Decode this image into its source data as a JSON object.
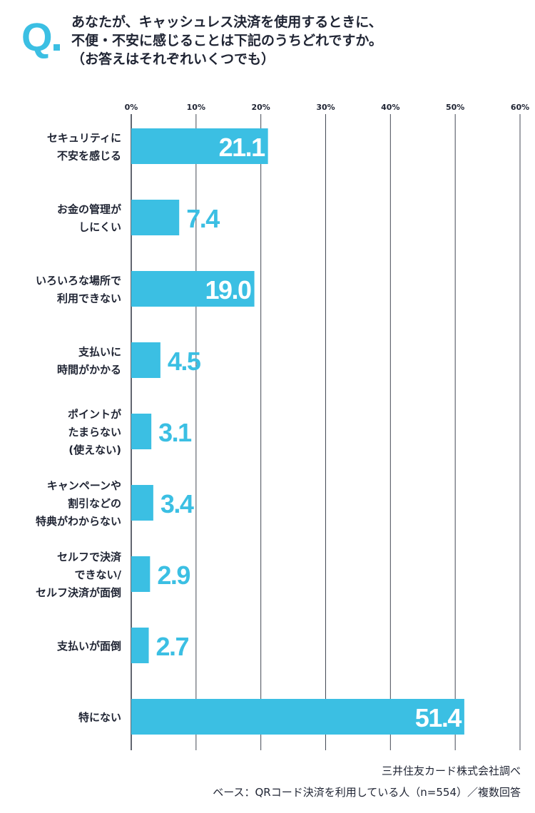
{
  "header": {
    "q_mark": "Q",
    "question_lines": [
      "あなたが、キャッシュレス決済を使用するときに、",
      "不便・不安に感じることは下記のうちどれですか。",
      "（お答えはそれぞれいくつでも）"
    ]
  },
  "chart_data": {
    "type": "bar",
    "orientation": "horizontal",
    "xlim": [
      0,
      60
    ],
    "tick_labels": [
      "0%",
      "10%",
      "20%",
      "30%",
      "40%",
      "50%",
      "60%"
    ],
    "grid": true,
    "color": "#3bbfe3",
    "categories": [
      [
        "セキュリティに",
        "不安を感じる"
      ],
      [
        "お金の管理が",
        "しにくい"
      ],
      [
        "いろいろな場所で",
        "利用できない"
      ],
      [
        "支払いに",
        "時間がかかる"
      ],
      [
        "ポイントが",
        "たまらない",
        "(使えない)"
      ],
      [
        "キャンペーンや",
        "割引などの",
        "特典がわからない"
      ],
      [
        "セルフで決済",
        "できない/",
        "セルフ決済が面倒"
      ],
      [
        "支払いが面倒"
      ],
      [
        "特にない"
      ]
    ],
    "values": [
      21.1,
      7.4,
      19.0,
      4.5,
      3.1,
      3.4,
      2.9,
      2.7,
      51.4
    ],
    "value_labels": [
      "21.1",
      "7.4",
      "19.0",
      "4.5",
      "3.1",
      "3.4",
      "2.9",
      "2.7",
      "51.4"
    ]
  },
  "footer": {
    "source": "三井住友カード株式会社調べ",
    "base_note": "ベース：QRコード決済を利用している人（n=554）／複数回答"
  }
}
